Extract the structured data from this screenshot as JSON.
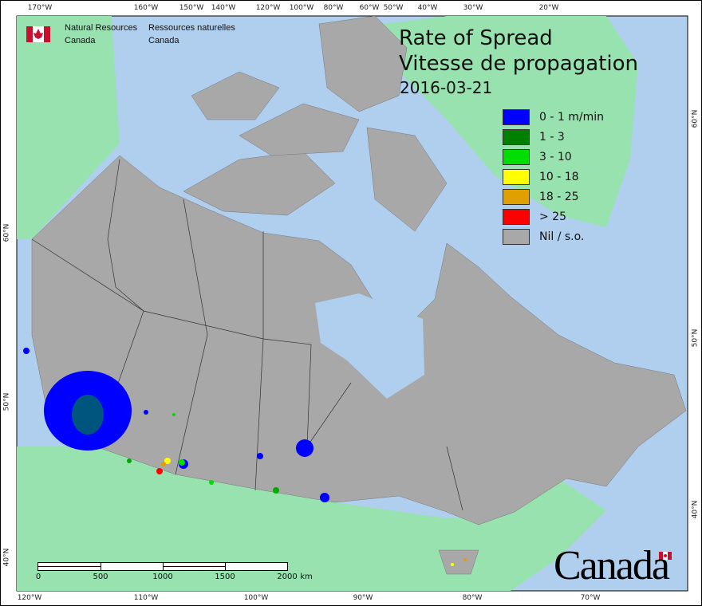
{
  "agency": {
    "en_line1": "Natural Resources",
    "en_line2": "Canada",
    "fr_line1": "Ressources naturelles",
    "fr_line2": "Canada"
  },
  "title": {
    "line1": "Rate of Spread",
    "line2": "Vitesse de propagation",
    "date": "2016-03-21"
  },
  "legend": [
    {
      "label": "0 - 1 m/min",
      "color": "#0000ff"
    },
    {
      "label": "1 - 3",
      "color": "#007f00"
    },
    {
      "label": "3 - 10",
      "color": "#00dd00"
    },
    {
      "label": "10 - 18",
      "color": "#ffff00"
    },
    {
      "label": "18 - 25",
      "color": "#e0a000"
    },
    {
      "label": "> 25",
      "color": "#ff0000"
    },
    {
      "label": "Nil / s.o.",
      "color": "#a8a8a8"
    }
  ],
  "top_ticks": [
    "170°W",
    "160°W",
    "150°W",
    "140°W",
    "120°W",
    "100°W",
    "80°W",
    "60°W",
    "50°W",
    "40°W",
    "30°W",
    "20°W"
  ],
  "bottom_ticks": [
    "120°W",
    "110°W",
    "100°W",
    "90°W",
    "80°W",
    "70°W"
  ],
  "left_lat": [
    "60°N",
    "50°N",
    "40°N"
  ],
  "right_lat": [
    "60°N",
    "50°N",
    "40°N"
  ],
  "scale": {
    "labels": [
      "0",
      "500",
      "1000",
      "1500",
      "2000"
    ],
    "unit": "km"
  },
  "wordmark": "Canada",
  "colors": {
    "ocean": "#b0cfef",
    "foreign_land": "#98e2b0",
    "canada": "#a8a8a8",
    "flag_red": "#c8102e"
  }
}
